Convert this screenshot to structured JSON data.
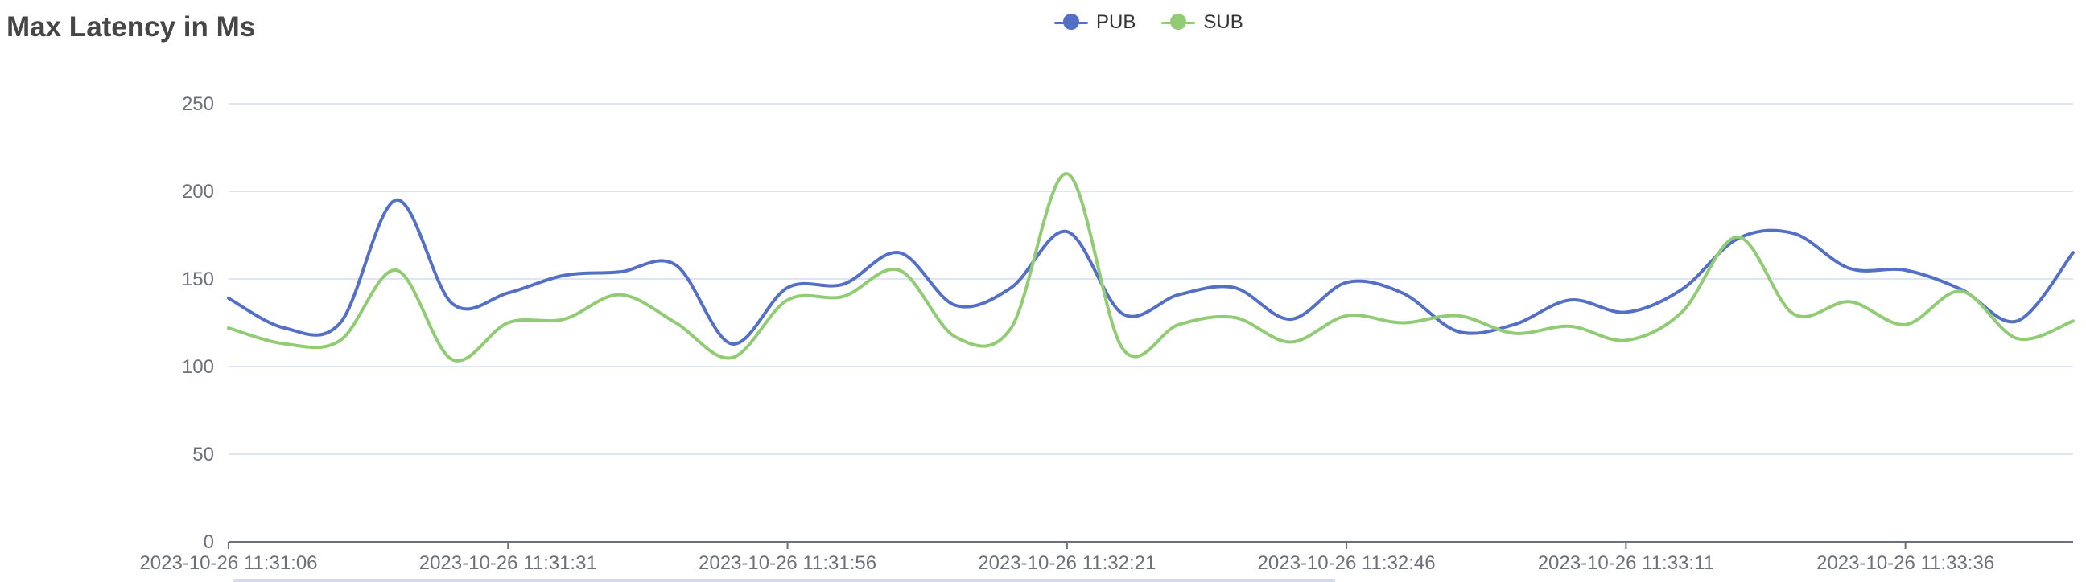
{
  "title": "Max Latency in Ms",
  "legend": [
    {
      "name": "PUB",
      "color": "#5470c6"
    },
    {
      "name": "SUB",
      "color": "#91cc75"
    }
  ],
  "chart_data": {
    "type": "line",
    "title": "Max Latency in Ms",
    "xlabel": "",
    "ylabel": "",
    "ylim": [
      0,
      250
    ],
    "y_ticks": [
      0,
      50,
      100,
      150,
      200,
      250
    ],
    "x_ticks": [
      "2023-10-26 11:31:06",
      "2023-10-26 11:31:31",
      "2023-10-26 11:31:56",
      "2023-10-26 11:32:21",
      "2023-10-26 11:32:46",
      "2023-10-26 11:33:11",
      "2023-10-26 11:33:36"
    ],
    "x_range": [
      "2023-10-26 11:31:06",
      "2023-10-26 11:33:51"
    ],
    "grid": true,
    "legend_position": "top-center",
    "smooth": true,
    "series": [
      {
        "name": "PUB",
        "color": "#5470c6",
        "x": [
          "2023-10-26 11:31:06",
          "2023-10-26 11:31:11",
          "2023-10-26 11:31:16",
          "2023-10-26 11:31:21",
          "2023-10-26 11:31:26",
          "2023-10-26 11:31:31",
          "2023-10-26 11:31:36",
          "2023-10-26 11:31:41",
          "2023-10-26 11:31:46",
          "2023-10-26 11:31:51",
          "2023-10-26 11:31:56",
          "2023-10-26 11:32:01",
          "2023-10-26 11:32:06",
          "2023-10-26 11:32:11",
          "2023-10-26 11:32:16",
          "2023-10-26 11:32:21",
          "2023-10-26 11:32:26",
          "2023-10-26 11:32:31",
          "2023-10-26 11:32:36",
          "2023-10-26 11:32:41",
          "2023-10-26 11:32:46",
          "2023-10-26 11:32:51",
          "2023-10-26 11:32:56",
          "2023-10-26 11:33:01",
          "2023-10-26 11:33:06",
          "2023-10-26 11:33:11",
          "2023-10-26 11:33:16",
          "2023-10-26 11:33:21",
          "2023-10-26 11:33:26",
          "2023-10-26 11:33:31",
          "2023-10-26 11:33:36",
          "2023-10-26 11:33:41",
          "2023-10-26 11:33:46",
          "2023-10-26 11:33:51"
        ],
        "values": [
          139,
          122,
          125,
          195,
          136,
          142,
          152,
          154,
          158,
          113,
          145,
          147,
          165,
          135,
          145,
          177,
          130,
          141,
          145,
          127,
          148,
          142,
          120,
          124,
          138,
          131,
          144,
          173,
          176,
          156,
          155,
          144,
          126,
          165
        ]
      },
      {
        "name": "SUB",
        "color": "#91cc75",
        "x": [
          "2023-10-26 11:31:06",
          "2023-10-26 11:31:11",
          "2023-10-26 11:31:16",
          "2023-10-26 11:31:21",
          "2023-10-26 11:31:26",
          "2023-10-26 11:31:31",
          "2023-10-26 11:31:36",
          "2023-10-26 11:31:41",
          "2023-10-26 11:31:46",
          "2023-10-26 11:31:51",
          "2023-10-26 11:31:56",
          "2023-10-26 11:32:01",
          "2023-10-26 11:32:06",
          "2023-10-26 11:32:11",
          "2023-10-26 11:32:16",
          "2023-10-26 11:32:21",
          "2023-10-26 11:32:26",
          "2023-10-26 11:32:31",
          "2023-10-26 11:32:36",
          "2023-10-26 11:32:41",
          "2023-10-26 11:32:46",
          "2023-10-26 11:32:51",
          "2023-10-26 11:32:56",
          "2023-10-26 11:33:01",
          "2023-10-26 11:33:06",
          "2023-10-26 11:33:11",
          "2023-10-26 11:33:16",
          "2023-10-26 11:33:21",
          "2023-10-26 11:33:26",
          "2023-10-26 11:33:31",
          "2023-10-26 11:33:36",
          "2023-10-26 11:33:41",
          "2023-10-26 11:33:46",
          "2023-10-26 11:33:51"
        ],
        "values": [
          122,
          113,
          115,
          155,
          104,
          125,
          127,
          141,
          125,
          105,
          138,
          140,
          155,
          117,
          122,
          210,
          110,
          124,
          128,
          114,
          129,
          125,
          129,
          119,
          123,
          115,
          131,
          174,
          130,
          137,
          124,
          143,
          116,
          126
        ]
      }
    ]
  },
  "zoom_slider": {
    "start_percent": 0,
    "end_percent": 60
  }
}
